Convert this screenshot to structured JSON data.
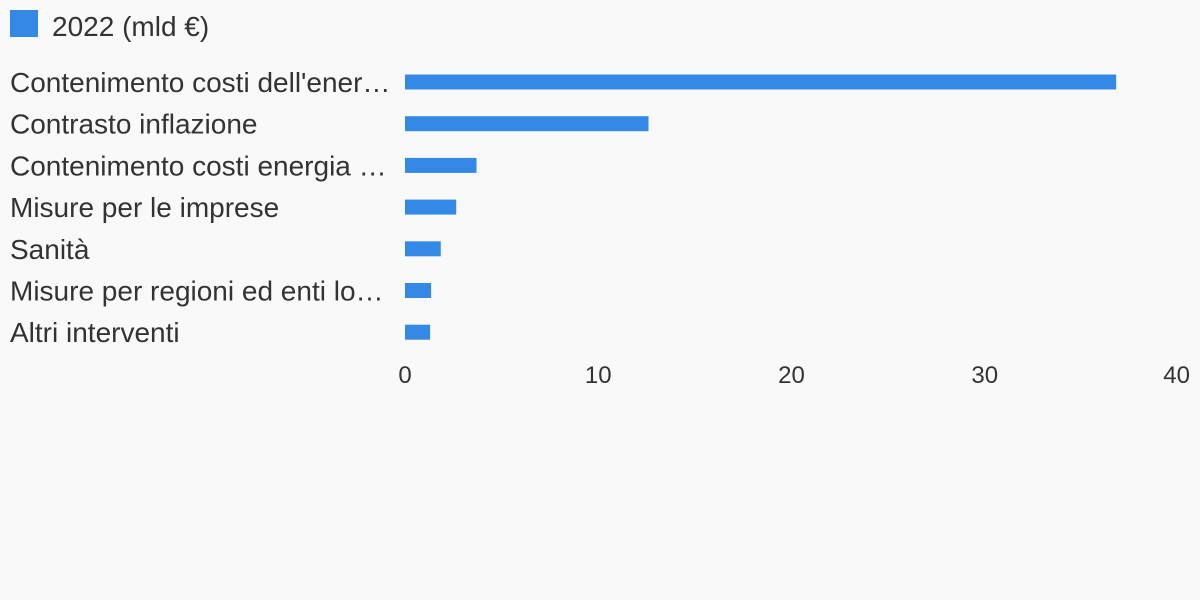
{
  "chart_data": {
    "type": "bar",
    "orientation": "horizontal",
    "categories": [
      "Contenimento costi dell'ener…",
      "Contrasto inflazione",
      "Contenimento costi energia …",
      "Misure per le imprese",
      "Sanità",
      "Misure per regioni ed enti lo…",
      "Altri interventi"
    ],
    "series": [
      {
        "name": "2022 (mld €)",
        "color": "#3589e6",
        "values": [
          36.8,
          12.6,
          3.7,
          2.65,
          1.85,
          1.35,
          1.3
        ]
      }
    ],
    "xlim": [
      0,
      40
    ],
    "x_ticks": [
      0,
      10,
      20,
      30,
      40
    ],
    "x_tick_labels": [
      "0",
      "10",
      "20",
      "30",
      "40"
    ],
    "legend_position": "top-left",
    "grid": false,
    "title": "",
    "xlabel": "",
    "ylabel": ""
  }
}
